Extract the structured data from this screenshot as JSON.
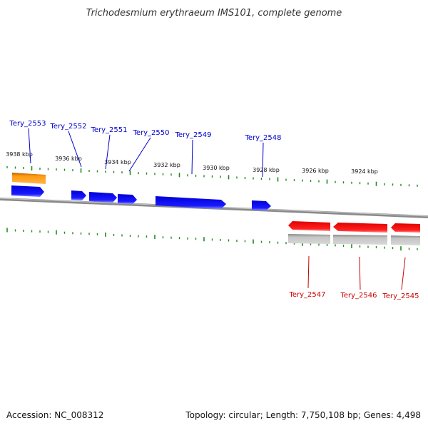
{
  "title": "Trichodesmium erythraeum IMS101, complete genome",
  "footer": {
    "accession": "Accession: NC_008312",
    "summary": "Topology: circular; Length: 7,750,108 bp; Genes: 4,498"
  },
  "colors": {
    "forward_gene": "#1010e0",
    "reverse_gene": "#ee1010",
    "highlight_gene": "#f08c00",
    "rna_shadow": "#b8b8b8",
    "backbone": "#8a8a8a",
    "tick": "#1e8a1e",
    "forward_label": "#0000cc",
    "reverse_label": "#cc0000"
  },
  "scale_labels": [
    "3938 kbp",
    "3936 kbp",
    "3934 kbp",
    "3932 kbp",
    "3930 kbp",
    "3928 kbp",
    "3926 kbp",
    "3924 kbp"
  ],
  "genes": [
    {
      "name": "Tery_2553",
      "strand": "forward"
    },
    {
      "name": "Tery_2552",
      "strand": "forward"
    },
    {
      "name": "Tery_2551",
      "strand": "forward"
    },
    {
      "name": "Tery_2550",
      "strand": "forward"
    },
    {
      "name": "Tery_2549",
      "strand": "forward"
    },
    {
      "name": "Tery_2548",
      "strand": "forward"
    },
    {
      "name": "Tery_2547",
      "strand": "reverse"
    },
    {
      "name": "Tery_2546",
      "strand": "reverse"
    },
    {
      "name": "Tery_2545",
      "strand": "reverse"
    }
  ]
}
